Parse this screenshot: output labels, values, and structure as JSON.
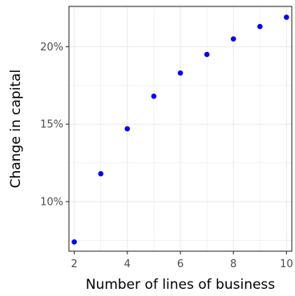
{
  "chart_data": {
    "type": "scatter",
    "title": "",
    "xlabel": "Number of lines of business",
    "ylabel": "Change in capital",
    "x": [
      2,
      3,
      4,
      5,
      6,
      7,
      8,
      9,
      10
    ],
    "y": [
      7.4,
      11.8,
      14.7,
      16.8,
      18.3,
      19.5,
      20.5,
      21.3,
      21.9
    ],
    "xlim": [
      1.8,
      10.2
    ],
    "ylim": [
      6.8,
      22.6
    ],
    "x_ticks": [
      2,
      4,
      6,
      8,
      10
    ],
    "x_tick_labels": [
      "2",
      "4",
      "6",
      "8",
      "10"
    ],
    "y_ticks": [
      10,
      15,
      20
    ],
    "y_tick_labels": [
      "10%",
      "15%",
      "20%"
    ],
    "grid": true,
    "point_color": "#0000ff",
    "grid_color": "#ebebeb",
    "panel_border_color": "#333333"
  }
}
